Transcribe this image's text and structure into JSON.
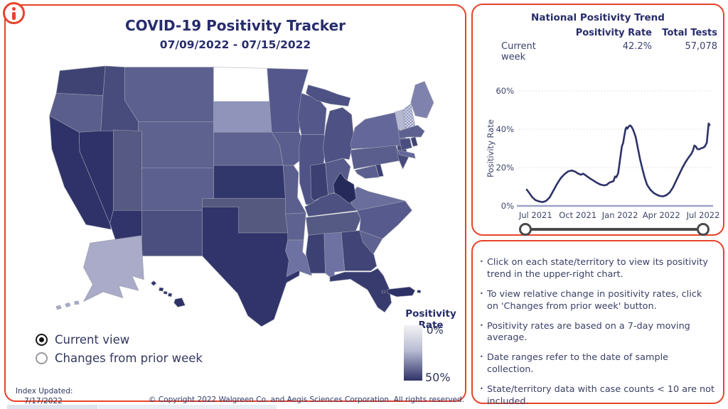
{
  "header": {
    "title": "COVID-19 Positivity Tracker",
    "date_range": "07/09/2022 - 07/15/2022"
  },
  "map": {
    "legend": {
      "title": "Positivity Rate",
      "max_label": "0%",
      "min_label": "50%",
      "gradient_top": "#f3f3f6",
      "gradient_bottom": "#2e3267"
    },
    "view_options": [
      {
        "label": "Current view",
        "selected": true
      },
      {
        "label": "Changes from prior week",
        "selected": false
      }
    ],
    "state_fills": {
      "WA": "#3f4374",
      "OR": "#5a5e8c",
      "CA": "#2e3268",
      "NV": "#2e3268",
      "ID": "#484c7d",
      "MT": "#5c608e",
      "WY": "#5e628f",
      "UT": "#555983",
      "CO": "#5c608e",
      "AZ": "#30346a",
      "NM": "#4b4f7f",
      "ND": "#ffffff",
      "SD": "#9094ba",
      "NE": "#5e6290",
      "KS": "#31366b",
      "OK": "#555980",
      "TX": "#30346a",
      "MN": "#53578b",
      "IA": "#5a5e8e",
      "MO": "#5b5f8d",
      "AR": "#5e6290",
      "LA": "#6e72a2",
      "WI": "#53578a",
      "IL": "#4f5386",
      "MI": "#4d5183",
      "IN": "#3b3f72",
      "OH": "#565a8a",
      "KY": "#4d5181",
      "TN": "#555a84",
      "MS": "#3c4073",
      "AL": "#6e72a2",
      "GA": "#404476",
      "FL": "#373b6e",
      "SC": "#5e6290",
      "NC": "#565a8c",
      "VA": "#6a6e9d",
      "WV": "#262a5b",
      "MD": "#5b5f90",
      "DE": "#3c4073",
      "PA": "#5a5e8c",
      "NJ": "#474b7c",
      "NY": "#63679a",
      "CT": "#4a4e7f",
      "RI": "#3f4374",
      "MA": "#5d6190",
      "VT": "#b5b8d1",
      "NH": "hatch",
      "ME": "#7e82ac",
      "AK": "#a9abc8",
      "HI": "#2e3268",
      "PR": "#2d3166"
    },
    "no_data_note": "ND shown white (no data)"
  },
  "footer": {
    "index_updated_label": "Index Updated:",
    "index_updated_date": "7/17/2022",
    "copyright": "© Copyright 2022 Walgreen Co. and Aegis Sciences Corporation. All rights reserved."
  },
  "trend_panel": {
    "title": "National Positivity Trend",
    "table": {
      "columns": [
        "Positivity Rate",
        "Total Tests"
      ],
      "row_label": "Current week",
      "positivity_rate": "42.2%",
      "total_tests": "57,078"
    },
    "chart_data": {
      "type": "line",
      "title": "National Positivity Trend",
      "ylabel": "Positivity Rate",
      "ylim": [
        0,
        60
      ],
      "yticks": [
        0,
        20,
        40,
        60
      ],
      "ytick_labels": [
        "0%",
        "20%",
        "40%",
        "60%"
      ],
      "xtick_dates": [
        "2021-07-01",
        "2021-10-01",
        "2022-01-01",
        "2022-04-01",
        "2022-07-01"
      ],
      "xtick_labels": [
        "Jul 2021",
        "Oct 2021",
        "Jan 2022",
        "Apr 2022",
        "Jul 2022"
      ],
      "x_domain": [
        "2021-05-26",
        "2022-07-18"
      ],
      "grid": "dotted horizontal",
      "legend_position": "none",
      "line_color": "#2d3268",
      "series": [
        {
          "name": "National positivity rate (7-day moving average)",
          "points": [
            [
              "2021-06-12",
              8.5
            ],
            [
              "2021-06-18",
              6.5
            ],
            [
              "2021-06-24",
              4.5
            ],
            [
              "2021-07-01",
              3.0
            ],
            [
              "2021-07-08",
              2.4
            ],
            [
              "2021-07-16",
              2.0
            ],
            [
              "2021-07-24",
              2.6
            ],
            [
              "2021-08-01",
              4.5
            ],
            [
              "2021-08-09",
              8.0
            ],
            [
              "2021-08-17",
              11.5
            ],
            [
              "2021-08-25",
              14.5
            ],
            [
              "2021-09-02",
              16.5
            ],
            [
              "2021-09-10",
              18.0
            ],
            [
              "2021-09-18",
              18.5
            ],
            [
              "2021-09-26",
              17.8
            ],
            [
              "2021-10-02",
              16.8
            ],
            [
              "2021-10-08",
              16.3
            ],
            [
              "2021-10-13",
              16.8
            ],
            [
              "2021-10-19",
              15.8
            ],
            [
              "2021-10-26",
              14.6
            ],
            [
              "2021-11-03",
              13.4
            ],
            [
              "2021-11-11",
              12.2
            ],
            [
              "2021-11-19",
              11.2
            ],
            [
              "2021-11-27",
              10.7
            ],
            [
              "2021-12-03",
              11.0
            ],
            [
              "2021-12-09",
              12.2
            ],
            [
              "2021-12-14",
              12.6
            ],
            [
              "2021-12-18",
              13.0
            ],
            [
              "2021-12-21",
              15.3
            ],
            [
              "2021-12-24",
              15.0
            ],
            [
              "2021-12-28",
              17.0
            ],
            [
              "2022-01-01",
              24.0
            ],
            [
              "2022-01-05",
              31.0
            ],
            [
              "2022-01-08",
              33.0
            ],
            [
              "2022-01-10",
              36.0
            ],
            [
              "2022-01-13",
              40.0
            ],
            [
              "2022-01-15",
              41.0
            ],
            [
              "2022-01-17",
              40.3
            ],
            [
              "2022-01-20",
              41.5
            ],
            [
              "2022-01-23",
              42.0
            ],
            [
              "2022-01-26",
              41.3
            ],
            [
              "2022-01-30",
              39.5
            ],
            [
              "2022-02-04",
              36.0
            ],
            [
              "2022-02-09",
              30.0
            ],
            [
              "2022-02-14",
              24.0
            ],
            [
              "2022-02-19",
              19.0
            ],
            [
              "2022-02-24",
              14.5
            ],
            [
              "2022-03-01",
              11.0
            ],
            [
              "2022-03-08",
              8.5
            ],
            [
              "2022-03-15",
              6.8
            ],
            [
              "2022-03-22",
              5.8
            ],
            [
              "2022-03-29",
              5.2
            ],
            [
              "2022-04-05",
              5.0
            ],
            [
              "2022-04-12",
              5.6
            ],
            [
              "2022-04-19",
              7.0
            ],
            [
              "2022-04-26",
              9.5
            ],
            [
              "2022-05-03",
              13.0
            ],
            [
              "2022-05-10",
              16.5
            ],
            [
              "2022-05-17",
              20.0
            ],
            [
              "2022-05-24",
              23.0
            ],
            [
              "2022-05-31",
              25.5
            ],
            [
              "2022-06-05",
              27.0
            ],
            [
              "2022-06-09",
              29.0
            ],
            [
              "2022-06-12",
              31.5
            ],
            [
              "2022-06-15",
              31.0
            ],
            [
              "2022-06-18",
              29.8
            ],
            [
              "2022-06-22",
              29.5
            ],
            [
              "2022-06-26",
              30.0
            ],
            [
              "2022-06-30",
              30.3
            ],
            [
              "2022-07-04",
              30.8
            ],
            [
              "2022-07-07",
              32.0
            ],
            [
              "2022-07-09",
              33.0
            ],
            [
              "2022-07-11",
              38.0
            ],
            [
              "2022-07-13",
              43.0
            ],
            [
              "2022-07-15",
              42.2
            ]
          ]
        }
      ]
    }
  },
  "notes_panel": {
    "bullets": [
      "Click on each state/territory to view its positivity trend in the upper-right chart.",
      "To view relative change in positivity rates, click on 'Changes from prior week' button.",
      "Positivity rates are based on a 7-day moving average.",
      "Date ranges refer to the date of sample collection.",
      "State/territory data with case counts < 10 are not included."
    ]
  }
}
